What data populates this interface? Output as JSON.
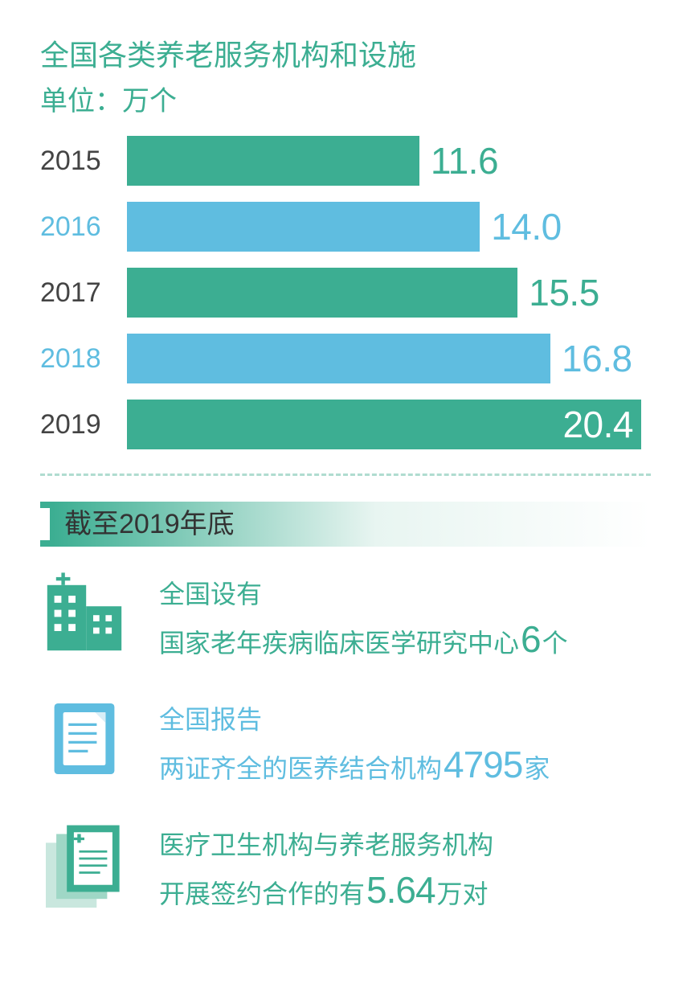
{
  "colors": {
    "green": "#3cae92",
    "blue": "#5fbde0",
    "greenText": "#3cae92",
    "blueText": "#5fbde0",
    "darkText": "#444444",
    "valueOutline": "#3cae92",
    "gradientEnd": "#e8f5f1"
  },
  "chart": {
    "title": "全国各类养老服务机构和设施",
    "subtitle": "单位：万个",
    "maxValue": 20.4,
    "trackWidth": 640,
    "bars": [
      {
        "year": "2015",
        "value": 11.6,
        "valueText": "11.6",
        "color": "#3cae92",
        "yearColor": "#444444",
        "valueColor": "#3cae92",
        "valueInside": false
      },
      {
        "year": "2016",
        "value": 14.0,
        "valueText": "14.0",
        "color": "#5fbde0",
        "yearColor": "#5fbde0",
        "valueColor": "#5fbde0",
        "valueInside": false
      },
      {
        "year": "2017",
        "value": 15.5,
        "valueText": "15.5",
        "color": "#3cae92",
        "yearColor": "#444444",
        "valueColor": "#3cae92",
        "valueInside": false
      },
      {
        "year": "2018",
        "value": 16.8,
        "valueText": "16.8",
        "color": "#5fbde0",
        "yearColor": "#5fbde0",
        "valueColor": "#5fbde0",
        "valueInside": false
      },
      {
        "year": "2019",
        "value": 20.4,
        "valueText": "20.4",
        "color": "#3cae92",
        "yearColor": "#444444",
        "valueColor": "#ffffff",
        "valueInside": true
      }
    ]
  },
  "section": {
    "header": "截至2019年底",
    "headerBarColor": "#3cae92",
    "stats": [
      {
        "icon": "building",
        "iconColor": "#3cae92",
        "textColor": "#3cae92",
        "line1": "全国设有",
        "line2pre": "国家老年疾病临床医学研究中心",
        "number": "6",
        "line2post": "个"
      },
      {
        "icon": "doc-blue",
        "iconColor": "#5fbde0",
        "textColor": "#5fbde0",
        "line1": "全国报告",
        "line2pre": "两证齐全的医养结合机构",
        "number": "4795",
        "line2post": "家"
      },
      {
        "icon": "docs-green",
        "iconColor": "#3cae92",
        "textColor": "#3cae92",
        "line1": "医疗卫生机构与养老服务机构",
        "line2pre": "开展签约合作的有",
        "number": "5.64",
        "line2post": "万对"
      }
    ]
  }
}
